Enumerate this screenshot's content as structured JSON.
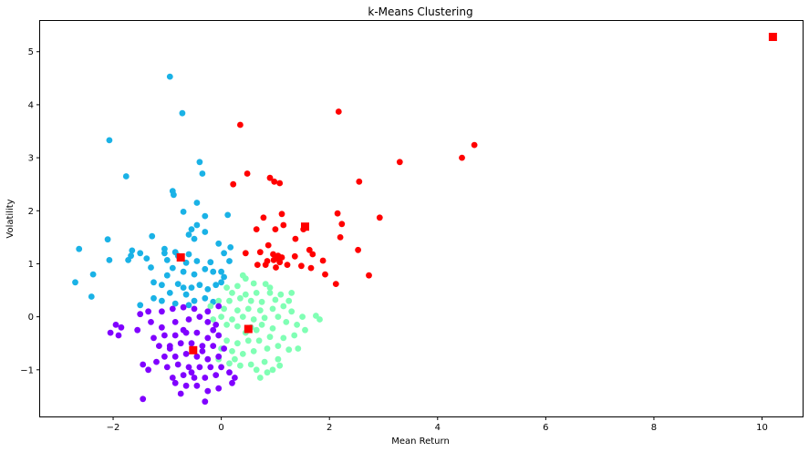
{
  "chart_data": {
    "type": "scatter",
    "title": "k-Means Clustering",
    "xlabel": "Mean Return",
    "ylabel": "Volatility",
    "xlim": [
      -3.35,
      10.75
    ],
    "ylim": [
      -1.88,
      5.58
    ],
    "xticks": [
      -2,
      0,
      2,
      4,
      6,
      8,
      10
    ],
    "yticks": [
      -1,
      0,
      1,
      2,
      3,
      4,
      5
    ],
    "grid": false,
    "colors": {
      "cluster_0": "#8000ff",
      "cluster_1": "#1ab2e6",
      "cluster_2": "#80ffb4",
      "cluster_3": "#ff0000",
      "centroid": "#ff0000"
    },
    "series": [
      {
        "cluster": 3,
        "points": [
          [
            0.35,
            3.62
          ],
          [
            2.17,
            3.87
          ],
          [
            4.68,
            3.24
          ],
          [
            4.45,
            3.0
          ],
          [
            3.3,
            2.92
          ],
          [
            0.48,
            2.7
          ],
          [
            0.9,
            2.62
          ],
          [
            0.98,
            2.55
          ],
          [
            1.08,
            2.52
          ],
          [
            0.22,
            2.5
          ],
          [
            2.55,
            2.55
          ],
          [
            2.93,
            1.87
          ],
          [
            2.15,
            1.95
          ],
          [
            2.23,
            1.75
          ],
          [
            2.2,
            1.5
          ],
          [
            2.53,
            1.26
          ],
          [
            2.73,
            0.78
          ],
          [
            2.12,
            0.62
          ],
          [
            1.92,
            0.8
          ],
          [
            1.88,
            1.06
          ],
          [
            1.66,
            0.92
          ],
          [
            1.48,
            0.96
          ],
          [
            1.63,
            1.26
          ],
          [
            1.69,
            1.18
          ],
          [
            1.36,
            1.14
          ],
          [
            1.37,
            1.47
          ],
          [
            1.52,
            1.65
          ],
          [
            1.12,
            1.94
          ],
          [
            1.15,
            1.73
          ],
          [
            1.0,
            1.65
          ],
          [
            0.78,
            1.87
          ],
          [
            0.65,
            1.65
          ],
          [
            0.87,
            1.35
          ],
          [
            0.96,
            1.18
          ],
          [
            1.03,
            1.1
          ],
          [
            1.08,
            1.03
          ],
          [
            1.22,
            0.98
          ],
          [
            1.01,
            0.93
          ],
          [
            0.85,
            1.05
          ],
          [
            0.72,
            1.22
          ],
          [
            0.82,
            0.98
          ],
          [
            0.67,
            0.98
          ],
          [
            0.45,
            1.2
          ],
          [
            0.97,
            1.07
          ],
          [
            1.05,
            1.15
          ],
          [
            1.12,
            1.12
          ]
        ]
      },
      {
        "cluster": 1,
        "points": [
          [
            -0.95,
            4.53
          ],
          [
            -0.72,
            3.84
          ],
          [
            -2.07,
            3.33
          ],
          [
            -1.76,
            2.65
          ],
          [
            -0.4,
            2.92
          ],
          [
            -0.35,
            2.7
          ],
          [
            -0.9,
            2.37
          ],
          [
            -0.88,
            2.3
          ],
          [
            -0.45,
            2.15
          ],
          [
            -0.7,
            1.98
          ],
          [
            -0.3,
            1.9
          ],
          [
            0.12,
            1.92
          ],
          [
            -0.45,
            1.73
          ],
          [
            -0.55,
            1.65
          ],
          [
            -0.6,
            1.55
          ],
          [
            -0.3,
            1.6
          ],
          [
            -0.5,
            1.47
          ],
          [
            -1.28,
            1.52
          ],
          [
            -2.1,
            1.46
          ],
          [
            -2.63,
            1.28
          ],
          [
            -1.65,
            1.25
          ],
          [
            -1.05,
            1.28
          ],
          [
            -0.85,
            1.22
          ],
          [
            -1.67,
            1.15
          ],
          [
            -1.5,
            1.2
          ],
          [
            -1.38,
            1.1
          ],
          [
            -2.07,
            1.07
          ],
          [
            -1.72,
            1.07
          ],
          [
            -0.05,
            1.38
          ],
          [
            0.17,
            1.31
          ],
          [
            -0.6,
            1.18
          ],
          [
            -0.8,
            1.15
          ],
          [
            -1.05,
            1.2
          ],
          [
            -1.0,
            1.07
          ],
          [
            -0.65,
            1.02
          ],
          [
            -0.45,
            1.05
          ],
          [
            -0.2,
            1.03
          ],
          [
            0.05,
            1.2
          ],
          [
            0.15,
            1.05
          ],
          [
            -2.37,
            0.8
          ],
          [
            -1.3,
            0.93
          ],
          [
            -0.9,
            0.92
          ],
          [
            -0.7,
            0.85
          ],
          [
            -0.5,
            0.8
          ],
          [
            -0.3,
            0.9
          ],
          [
            -0.15,
            0.85
          ],
          [
            0.0,
            0.85
          ],
          [
            0.05,
            0.75
          ],
          [
            -1.0,
            0.78
          ],
          [
            -1.25,
            0.65
          ],
          [
            -1.1,
            0.6
          ],
          [
            -0.8,
            0.62
          ],
          [
            -0.55,
            0.55
          ],
          [
            -0.4,
            0.6
          ],
          [
            -0.25,
            0.52
          ],
          [
            -0.1,
            0.6
          ],
          [
            0.0,
            0.65
          ],
          [
            -2.7,
            0.65
          ],
          [
            -2.4,
            0.38
          ],
          [
            -1.5,
            0.22
          ],
          [
            -1.25,
            0.35
          ],
          [
            -0.95,
            0.45
          ],
          [
            -0.65,
            0.42
          ],
          [
            -0.5,
            0.3
          ],
          [
            -0.3,
            0.35
          ],
          [
            -0.15,
            0.28
          ],
          [
            -0.6,
            0.22
          ],
          [
            -0.85,
            0.25
          ],
          [
            -1.1,
            0.3
          ],
          [
            -0.7,
            0.55
          ]
        ]
      },
      {
        "cluster": 2,
        "points": [
          [
            0.4,
            0.78
          ],
          [
            0.45,
            0.72
          ],
          [
            0.6,
            0.63
          ],
          [
            0.82,
            0.62
          ],
          [
            0.9,
            0.55
          ],
          [
            0.3,
            0.58
          ],
          [
            0.1,
            0.55
          ],
          [
            0.2,
            0.45
          ],
          [
            0.45,
            0.42
          ],
          [
            0.65,
            0.45
          ],
          [
            0.9,
            0.45
          ],
          [
            1.1,
            0.42
          ],
          [
            1.3,
            0.45
          ],
          [
            1.25,
            0.3
          ],
          [
            1.0,
            0.32
          ],
          [
            0.75,
            0.28
          ],
          [
            0.55,
            0.3
          ],
          [
            0.35,
            0.35
          ],
          [
            0.15,
            0.3
          ],
          [
            -0.05,
            0.3
          ],
          [
            -0.2,
            0.2
          ],
          [
            0.05,
            0.15
          ],
          [
            0.3,
            0.12
          ],
          [
            0.5,
            0.15
          ],
          [
            0.72,
            0.12
          ],
          [
            0.95,
            0.15
          ],
          [
            1.15,
            0.2
          ],
          [
            1.3,
            0.1
          ],
          [
            1.5,
            0.0
          ],
          [
            1.75,
            0.02
          ],
          [
            1.82,
            -0.05
          ],
          [
            1.05,
            0.0
          ],
          [
            0.8,
            -0.02
          ],
          [
            0.6,
            -0.05
          ],
          [
            0.4,
            0.0
          ],
          [
            0.2,
            -0.05
          ],
          [
            0.0,
            0.0
          ],
          [
            -0.15,
            -0.05
          ],
          [
            0.1,
            -0.15
          ],
          [
            0.3,
            -0.18
          ],
          [
            0.55,
            -0.2
          ],
          [
            0.75,
            -0.15
          ],
          [
            0.95,
            -0.22
          ],
          [
            1.2,
            -0.1
          ],
          [
            1.4,
            -0.15
          ],
          [
            1.55,
            -0.25
          ],
          [
            1.35,
            -0.35
          ],
          [
            1.15,
            -0.4
          ],
          [
            0.9,
            -0.38
          ],
          [
            0.7,
            -0.45
          ],
          [
            0.5,
            -0.45
          ],
          [
            0.3,
            -0.5
          ],
          [
            0.1,
            -0.45
          ],
          [
            -0.05,
            -0.35
          ],
          [
            0.0,
            -0.6
          ],
          [
            0.2,
            -0.65
          ],
          [
            0.4,
            -0.7
          ],
          [
            0.6,
            -0.65
          ],
          [
            0.85,
            -0.6
          ],
          [
            1.05,
            -0.55
          ],
          [
            1.25,
            -0.62
          ],
          [
            1.42,
            -0.6
          ],
          [
            1.05,
            -0.8
          ],
          [
            0.8,
            -0.85
          ],
          [
            0.55,
            -0.9
          ],
          [
            0.35,
            -0.92
          ],
          [
            0.15,
            -0.88
          ],
          [
            0.65,
            -1.0
          ],
          [
            0.85,
            -1.05
          ],
          [
            1.08,
            -0.92
          ],
          [
            0.72,
            -1.15
          ],
          [
            0.95,
            -1.0
          ],
          [
            0.25,
            -0.8
          ],
          [
            -0.05,
            -0.8
          ],
          [
            0.45,
            -0.3
          ],
          [
            0.65,
            -0.25
          ]
        ]
      },
      {
        "cluster": 0,
        "points": [
          [
            -0.05,
            0.2
          ],
          [
            -0.25,
            0.1
          ],
          [
            -0.5,
            0.15
          ],
          [
            -0.7,
            0.18
          ],
          [
            -0.9,
            0.15
          ],
          [
            -1.1,
            0.1
          ],
          [
            -1.35,
            0.1
          ],
          [
            -1.5,
            0.05
          ],
          [
            -1.3,
            -0.1
          ],
          [
            -1.55,
            -0.25
          ],
          [
            -1.85,
            -0.2
          ],
          [
            -1.9,
            -0.35
          ],
          [
            -2.05,
            -0.3
          ],
          [
            -1.95,
            -0.15
          ],
          [
            -1.1,
            -0.2
          ],
          [
            -0.85,
            -0.1
          ],
          [
            -0.6,
            -0.05
          ],
          [
            -0.4,
            0.0
          ],
          [
            -0.25,
            -0.1
          ],
          [
            -0.1,
            -0.15
          ],
          [
            -0.05,
            -0.35
          ],
          [
            -0.25,
            -0.4
          ],
          [
            -0.45,
            -0.3
          ],
          [
            -0.65,
            -0.3
          ],
          [
            -0.85,
            -0.35
          ],
          [
            -1.05,
            -0.35
          ],
          [
            -1.25,
            -0.4
          ],
          [
            -1.15,
            -0.55
          ],
          [
            -0.95,
            -0.55
          ],
          [
            -0.75,
            -0.5
          ],
          [
            -0.55,
            -0.5
          ],
          [
            -0.35,
            -0.55
          ],
          [
            -0.15,
            -0.55
          ],
          [
            0.05,
            -0.6
          ],
          [
            -0.05,
            -0.75
          ],
          [
            -0.25,
            -0.8
          ],
          [
            -0.45,
            -0.75
          ],
          [
            -0.65,
            -0.7
          ],
          [
            -0.85,
            -0.75
          ],
          [
            -1.05,
            -0.75
          ],
          [
            -1.2,
            -0.85
          ],
          [
            -1.0,
            -0.95
          ],
          [
            -0.8,
            -0.9
          ],
          [
            -0.6,
            -0.95
          ],
          [
            -0.4,
            -0.95
          ],
          [
            -0.2,
            -0.95
          ],
          [
            0.0,
            -0.95
          ],
          [
            0.15,
            -1.05
          ],
          [
            -0.1,
            -1.1
          ],
          [
            -0.3,
            -1.15
          ],
          [
            -0.5,
            -1.15
          ],
          [
            -0.7,
            -1.1
          ],
          [
            -0.9,
            -1.15
          ],
          [
            -1.45,
            -0.9
          ],
          [
            -1.35,
            -1.0
          ],
          [
            -0.85,
            -1.25
          ],
          [
            -0.65,
            -1.3
          ],
          [
            -0.45,
            -1.3
          ],
          [
            -0.25,
            -1.4
          ],
          [
            -0.05,
            -1.35
          ],
          [
            0.2,
            -1.25
          ],
          [
            0.25,
            -1.15
          ],
          [
            -0.75,
            -1.45
          ],
          [
            -0.3,
            -1.6
          ],
          [
            -1.45,
            -1.55
          ],
          [
            -0.55,
            -1.05
          ],
          [
            -0.35,
            -0.65
          ],
          [
            -0.15,
            -0.25
          ],
          [
            -0.95,
            -0.6
          ],
          [
            -0.7,
            -0.25
          ]
        ]
      }
    ],
    "centroids": [
      [
        10.2,
        5.28
      ],
      [
        1.55,
        1.7
      ],
      [
        -0.75,
        1.12
      ],
      [
        0.5,
        -0.23
      ],
      [
        -0.52,
        -0.63
      ]
    ]
  }
}
